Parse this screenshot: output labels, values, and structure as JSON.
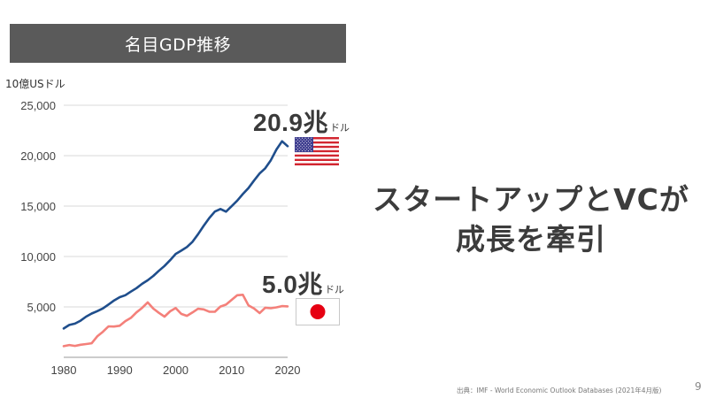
{
  "slide": {
    "title": "名目GDP推移",
    "headline_line1": "スタートアップとVCが",
    "headline_line2": "成長を牽引",
    "source": "出典：IMF - World Economic Outlook Databases (2021年4月版)",
    "page_number": "9"
  },
  "callouts": {
    "us": {
      "value": "20.9兆",
      "unit": "ドル",
      "flag": "us-flag-icon"
    },
    "jp": {
      "value": "5.0兆",
      "unit": "ドル",
      "flag": "japan-flag-icon"
    }
  },
  "colors": {
    "us_line": "#1f4e8c",
    "jp_line": "#f4807a",
    "grid": "#d9d9d9",
    "title_bar": "#5a5a5a"
  },
  "chart_data": {
    "type": "line",
    "title": "名目GDP推移",
    "ylabel": "10億USドル",
    "xlabel": "",
    "xlim": [
      1980,
      2020
    ],
    "ylim": [
      0,
      25000
    ],
    "xticks": [
      1980,
      1990,
      2000,
      2010,
      2020
    ],
    "yticks": [
      5000,
      10000,
      15000,
      20000,
      25000
    ],
    "ytick_labels": [
      "5,000",
      "10,000",
      "15,000",
      "20,000",
      "25,000"
    ],
    "grid": true,
    "legend": "none",
    "x": [
      1980,
      1981,
      1982,
      1983,
      1984,
      1985,
      1986,
      1987,
      1988,
      1989,
      1990,
      1991,
      1992,
      1993,
      1994,
      1995,
      1996,
      1997,
      1998,
      1999,
      2000,
      2001,
      2002,
      2003,
      2004,
      2005,
      2006,
      2007,
      2008,
      2009,
      2010,
      2011,
      2012,
      2013,
      2014,
      2015,
      2016,
      2017,
      2018,
      2019,
      2020
    ],
    "series": [
      {
        "name": "United States",
        "values": [
          2857,
          3207,
          3344,
          3634,
          4037,
          4339,
          4580,
          4855,
          5236,
          5642,
          5963,
          6158,
          6520,
          6859,
          7287,
          7640,
          8073,
          8578,
          9063,
          9631,
          10252,
          10582,
          10936,
          11458,
          12214,
          13037,
          13815,
          14452,
          14713,
          14449,
          14992,
          15543,
          16197,
          16785,
          17527,
          18238,
          18745,
          19543,
          20612,
          21433,
          20937
        ]
      },
      {
        "name": "Japan",
        "values": [
          1105,
          1219,
          1134,
          1243,
          1318,
          1398,
          2078,
          2532,
          3072,
          3054,
          3133,
          3584,
          3909,
          4454,
          4907,
          5449,
          4833,
          4414,
          4033,
          4562,
          4888,
          4303,
          4115,
          4446,
          4815,
          4755,
          4530,
          4515,
          5037,
          5231,
          5700,
          6157,
          6203,
          5156,
          4850,
          4389,
          4923,
          4867,
          4955,
          5082,
          5049
        ]
      }
    ],
    "annotations": [
      {
        "series": "United States",
        "text": "20.9兆ドル"
      },
      {
        "series": "Japan",
        "text": "5.0兆ドル"
      }
    ]
  }
}
